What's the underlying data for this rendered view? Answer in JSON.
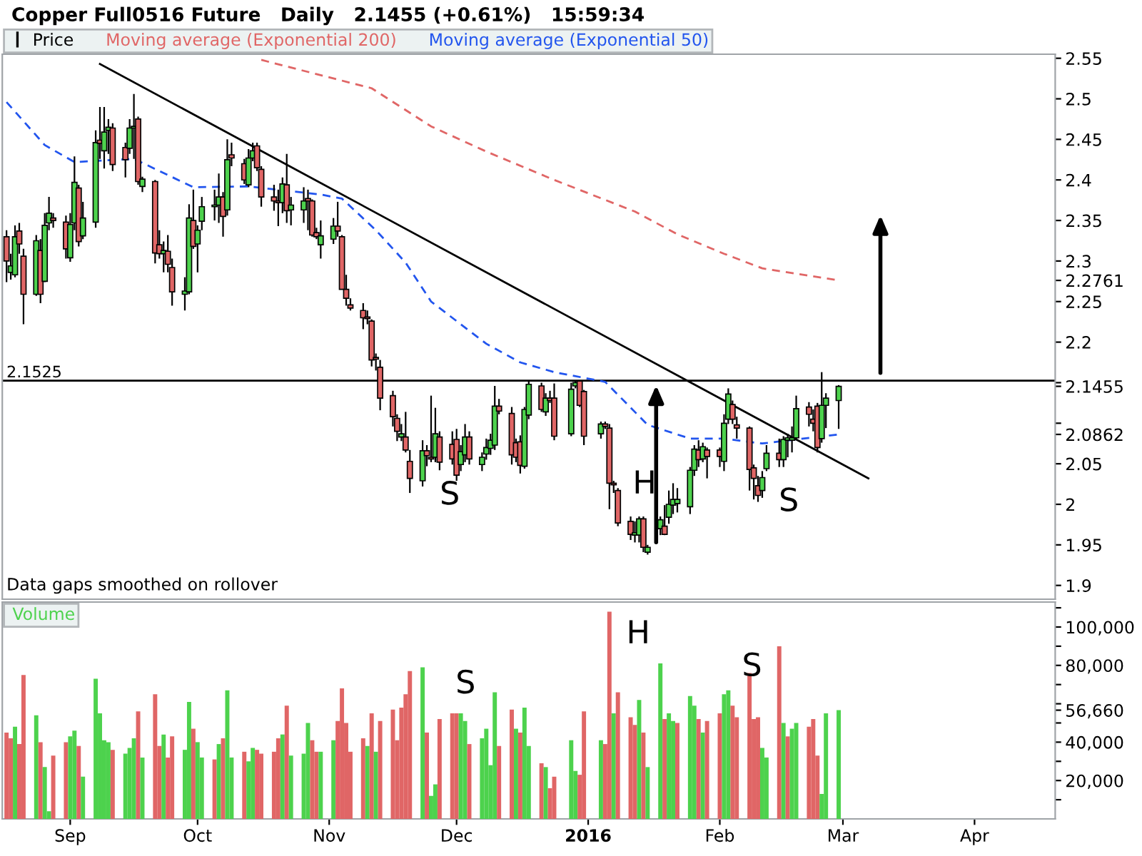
{
  "chart_data": [
    {
      "type": "candlestick",
      "title": "Copper Full0516 Future   Daily   2.1455 (+0.61%)   15:59:34",
      "legend": "top left",
      "tick_labels": "y",
      "grid": false,
      "xlim": [
        "2015-08-16",
        "2016-04-20"
      ],
      "ylim": [
        1.883,
        2.555
      ],
      "yticks": [
        1.9,
        1.95,
        2,
        2.05,
        {
          "value": 2.0862,
          "label": "2.0862"
        },
        {
          "value": 2.1,
          "label": null
        },
        {
          "value": 2.1455,
          "label": "2.1455"
        },
        {
          "value": 2.15,
          "label": null
        },
        2.2,
        2.25,
        {
          "value": 2.2761,
          "label": "2.2761"
        },
        2.3,
        2.35,
        2.4,
        2.45,
        2.5,
        2.55
      ],
      "x": [
        "2015-08-17",
        "2015-08-18",
        "2015-08-19",
        "2015-08-20",
        "2015-08-21",
        "2015-08-24",
        "2015-08-25",
        "2015-08-26",
        "2015-08-27",
        "2015-08-28",
        "2015-08-31",
        "2015-09-01",
        "2015-09-02",
        "2015-09-03",
        "2015-09-04",
        "2015-09-07",
        "2015-09-08",
        "2015-09-09",
        "2015-09-10",
        "2015-09-11",
        "2015-09-14",
        "2015-09-15",
        "2015-09-16",
        "2015-09-17",
        "2015-09-18",
        "2015-09-21",
        "2015-09-22",
        "2015-09-23",
        "2015-09-24",
        "2015-09-25",
        "2015-09-28",
        "2015-09-29",
        "2015-09-30",
        "2015-10-01",
        "2015-10-02",
        "2015-10-05",
        "2015-10-06",
        "2015-10-07",
        "2015-10-08",
        "2015-10-09",
        "2015-10-12",
        "2015-10-13",
        "2015-10-14",
        "2015-10-15",
        "2015-10-16",
        "2015-10-19",
        "2015-10-20",
        "2015-10-21",
        "2015-10-22",
        "2015-10-23",
        "2015-10-26",
        "2015-10-27",
        "2015-10-28",
        "2015-10-29",
        "2015-10-30",
        "2015-11-02",
        "2015-11-03",
        "2015-11-04",
        "2015-11-05",
        "2015-11-06",
        "2015-11-09",
        "2015-11-10",
        "2015-11-11",
        "2015-11-12",
        "2015-11-13",
        "2015-11-16",
        "2015-11-17",
        "2015-11-18",
        "2015-11-19",
        "2015-11-20",
        "2015-11-23",
        "2015-11-24",
        "2015-11-25",
        "2015-11-26",
        "2015-11-27",
        "2015-11-30",
        "2015-12-01",
        "2015-12-02",
        "2015-12-03",
        "2015-12-04",
        "2015-12-07",
        "2015-12-08",
        "2015-12-09",
        "2015-12-10",
        "2015-12-11",
        "2015-12-14",
        "2015-12-15",
        "2015-12-16",
        "2015-12-17",
        "2015-12-18",
        "2015-12-21",
        "2015-12-22",
        "2015-12-23",
        "2015-12-24",
        "2015-12-28",
        "2015-12-29",
        "2015-12-30",
        "2015-12-31",
        "2016-01-04",
        "2016-01-05",
        "2016-01-06",
        "2016-01-07",
        "2016-01-08",
        "2016-01-11",
        "2016-01-12",
        "2016-01-13",
        "2016-01-14",
        "2016-01-15",
        "2016-01-18",
        "2016-01-19",
        "2016-01-20",
        "2016-01-21",
        "2016-01-22",
        "2016-01-25",
        "2016-01-26",
        "2016-01-27",
        "2016-01-28",
        "2016-01-29",
        "2016-02-01",
        "2016-02-02",
        "2016-02-03",
        "2016-02-04",
        "2016-02-05",
        "2016-02-08",
        "2016-02-09",
        "2016-02-10",
        "2016-02-11",
        "2016-02-12",
        "2016-02-15",
        "2016-02-16",
        "2016-02-17",
        "2016-02-18",
        "2016-02-19",
        "2016-02-22",
        "2016-02-23",
        "2016-02-24",
        "2016-02-25",
        "2016-02-26",
        "2016-02-29"
      ],
      "series": [
        {
          "name": "Price",
          "color": "#000000",
          "ohlc": [
            [
              2.33,
              2.338,
              2.274,
              2.3
            ],
            [
              2.286,
              2.309,
              2.277,
              2.294
            ],
            [
              2.283,
              2.344,
              2.28,
              2.33
            ],
            [
              2.337,
              2.347,
              2.309,
              2.321
            ],
            [
              2.306,
              2.315,
              2.222,
              2.259
            ],
            [
              2.259,
              2.332,
              2.257,
              2.325
            ],
            [
              2.313,
              2.327,
              2.248,
              2.259
            ],
            [
              2.275,
              2.359,
              2.274,
              2.344
            ],
            [
              2.347,
              2.379,
              2.338,
              2.359
            ],
            [
              2.353,
              2.359,
              2.341,
              2.35
            ],
            [
              2.348,
              2.356,
              2.303,
              2.315
            ],
            [
              2.304,
              2.359,
              2.299,
              2.345
            ],
            [
              2.347,
              2.429,
              2.338,
              2.397
            ],
            [
              2.39,
              2.394,
              2.318,
              2.324
            ],
            [
              2.331,
              2.373,
              2.327,
              2.353
            ],
            [
              2.348,
              2.461,
              2.341,
              2.446
            ],
            [
              2.449,
              2.49,
              2.426,
              2.445
            ],
            [
              2.436,
              2.49,
              2.414,
              2.459
            ],
            [
              2.461,
              2.475,
              2.432,
              2.465
            ],
            [
              2.464,
              2.47,
              2.411,
              2.419
            ],
            [
              2.44,
              2.446,
              2.403,
              2.425
            ],
            [
              2.439,
              2.475,
              2.432,
              2.464
            ],
            [
              2.464,
              2.506,
              2.426,
              2.466
            ],
            [
              2.475,
              2.478,
              2.394,
              2.398
            ],
            [
              2.392,
              2.404,
              2.385,
              2.401
            ],
            [
              2.398,
              2.4,
              2.297,
              2.31
            ],
            [
              2.32,
              2.338,
              2.303,
              2.309
            ],
            [
              2.309,
              2.324,
              2.286,
              2.313
            ],
            [
              2.312,
              2.332,
              2.286,
              2.296
            ],
            [
              2.292,
              2.303,
              2.245,
              2.262
            ],
            [
              2.259,
              2.28,
              2.239,
              2.263
            ],
            [
              2.262,
              2.37,
              2.259,
              2.353
            ],
            [
              2.35,
              2.388,
              2.315,
              2.318
            ],
            [
              2.321,
              2.344,
              2.286,
              2.338
            ],
            [
              2.349,
              2.379,
              2.338,
              2.367
            ],
            [
              2.367,
              2.388,
              2.35,
              2.369
            ],
            [
              2.369,
              2.408,
              2.347,
              2.379
            ],
            [
              2.379,
              2.385,
              2.33,
              2.355
            ],
            [
              2.363,
              2.45,
              2.356,
              2.425
            ],
            [
              2.431,
              2.446,
              2.417,
              2.427
            ],
            [
              2.42,
              2.426,
              2.395,
              2.4
            ],
            [
              2.394,
              2.438,
              2.391,
              2.427
            ],
            [
              2.427,
              2.446,
              2.423,
              2.436
            ],
            [
              2.442,
              2.446,
              2.411,
              2.415
            ],
            [
              2.413,
              2.417,
              2.367,
              2.379
            ],
            [
              2.379,
              2.394,
              2.362,
              2.374
            ],
            [
              2.374,
              2.388,
              2.343,
              2.372
            ],
            [
              2.372,
              2.403,
              2.359,
              2.395
            ],
            [
              2.394,
              2.432,
              2.347,
              2.362
            ],
            [
              2.363,
              2.379,
              2.344,
              2.369
            ],
            [
              2.363,
              2.391,
              2.347,
              2.374
            ],
            [
              2.377,
              2.388,
              2.338,
              2.374
            ],
            [
              2.374,
              2.376,
              2.33,
              2.332
            ],
            [
              2.335,
              2.341,
              2.327,
              2.33
            ],
            [
              2.32,
              2.35,
              2.303,
              2.331
            ],
            [
              2.327,
              2.353,
              2.321,
              2.343
            ],
            [
              2.343,
              2.373,
              2.33,
              2.337
            ],
            [
              2.33,
              2.332,
              2.265,
              2.265
            ],
            [
              2.265,
              2.283,
              2.245,
              2.254
            ],
            [
              2.246,
              2.254,
              2.239,
              2.242
            ],
            [
              2.239,
              2.248,
              2.216,
              2.23
            ],
            [
              2.231,
              2.239,
              2.222,
              2.229
            ],
            [
              2.226,
              2.228,
              2.17,
              2.178
            ],
            [
              2.181,
              2.186,
              2.165,
              2.179
            ],
            [
              2.169,
              2.178,
              2.116,
              2.131
            ],
            [
              2.134,
              2.14,
              2.096,
              2.108
            ],
            [
              2.106,
              2.111,
              2.078,
              2.09
            ],
            [
              2.083,
              2.099,
              2.078,
              2.087
            ],
            [
              2.083,
              2.114,
              2.064,
              2.067
            ],
            [
              2.053,
              2.067,
              2.014,
              2.032
            ],
            [
              2.029,
              2.079,
              2.022,
              2.066
            ],
            [
              2.066,
              2.073,
              2.047,
              2.06
            ],
            [
              2.058,
              2.134,
              2.052,
              2.056
            ],
            [
              2.058,
              2.119,
              2.052,
              2.087
            ],
            [
              2.083,
              2.09,
              2.042,
              2.052
            ],
            [
              2.074,
              2.09,
              2.049,
              2.056
            ],
            [
              2.08,
              2.093,
              2.029,
              2.036
            ],
            [
              2.049,
              2.073,
              2.041,
              2.065
            ],
            [
              2.061,
              2.099,
              2.052,
              2.083
            ],
            [
              2.083,
              2.09,
              2.049,
              2.056
            ],
            [
              2.049,
              2.064,
              2.041,
              2.058
            ],
            [
              2.062,
              2.081,
              2.055,
              2.07
            ],
            [
              2.069,
              2.087,
              2.061,
              2.079
            ],
            [
              2.073,
              2.146,
              2.067,
              2.121
            ],
            [
              2.121,
              2.13,
              2.111,
              2.115
            ],
            [
              2.112,
              2.12,
              2.049,
              2.061
            ],
            [
              2.076,
              2.081,
              2.052,
              2.058
            ],
            [
              2.077,
              2.085,
              2.038,
              2.048
            ],
            [
              2.047,
              2.12,
              2.044,
              2.117
            ],
            [
              2.11,
              2.152,
              2.105,
              2.148
            ],
            [
              2.146,
              2.15,
              2.114,
              2.117
            ],
            [
              2.114,
              2.137,
              2.109,
              2.131
            ],
            [
              2.131,
              2.14,
              2.125,
              2.128
            ],
            [
              2.131,
              2.149,
              2.079,
              2.084
            ],
            [
              2.087,
              2.15,
              2.084,
              2.142
            ],
            [
              2.146,
              2.152,
              2.143,
              2.15
            ],
            [
              2.152,
              2.153,
              2.12,
              2.122
            ],
            [
              2.139,
              2.141,
              2.073,
              2.084
            ],
            [
              2.087,
              2.102,
              2.081,
              2.099
            ],
            [
              2.099,
              2.102,
              2.093,
              2.096
            ],
            [
              2.094,
              2.099,
              1.994,
              2.026
            ],
            [
              2.026,
              2.029,
              2.014,
              2.024
            ],
            [
              2.017,
              2.02,
              1.973,
              1.977
            ],
            [
              1.979,
              1.985,
              1.956,
              1.963
            ],
            [
              1.962,
              1.979,
              1.953,
              1.965
            ],
            [
              1.962,
              1.985,
              1.953,
              1.982
            ],
            [
              1.982,
              1.985,
              1.941,
              1.947
            ],
            [
              1.941,
              1.95,
              1.938,
              1.947
            ],
            [
              1.97,
              1.985,
              1.962,
              1.981
            ],
            [
              1.973,
              1.999,
              1.962,
              1.963
            ],
            [
              1.984,
              2.017,
              1.976,
              2.0
            ],
            [
              1.999,
              2.026,
              1.988,
              2.006
            ],
            [
              2.001,
              2.02,
              1.99,
              2.006
            ],
            [
              1.997,
              2.046,
              1.988,
              2.042
            ],
            [
              2.042,
              2.073,
              2.035,
              2.068
            ],
            [
              2.067,
              2.079,
              2.046,
              2.055
            ],
            [
              2.056,
              2.076,
              2.052,
              2.071
            ],
            [
              2.067,
              2.07,
              2.032,
              2.059
            ],
            [
              2.067,
              2.07,
              2.046,
              2.059
            ],
            [
              2.053,
              2.111,
              2.041,
              2.1
            ],
            [
              2.105,
              2.143,
              2.099,
              2.136
            ],
            [
              2.123,
              2.128,
              2.099,
              2.105
            ],
            [
              2.098,
              2.108,
              2.081,
              2.094
            ],
            [
              2.094,
              2.096,
              2.017,
              2.043
            ],
            [
              2.045,
              2.049,
              2.006,
              2.032
            ],
            [
              2.023,
              2.035,
              2.003,
              2.011
            ],
            [
              2.017,
              2.041,
              2.008,
              2.033
            ],
            [
              2.044,
              2.073,
              2.041,
              2.063
            ],
            [
              2.063,
              2.081,
              2.046,
              2.055
            ],
            [
              2.055,
              2.084,
              2.046,
              2.08
            ],
            [
              2.079,
              2.087,
              2.058,
              2.082
            ],
            [
              2.079,
              2.096,
              2.064,
              2.082
            ],
            [
              2.082,
              2.134,
              2.079,
              2.118
            ],
            [
              2.12,
              2.126,
              2.096,
              2.111
            ],
            [
              2.105,
              2.117,
              2.09,
              2.1
            ],
            [
              2.121,
              2.125,
              2.064,
              2.07
            ],
            [
              2.081,
              2.163,
              2.076,
              2.122
            ],
            [
              2.122,
              2.137,
              2.094,
              2.131
            ],
            [
              2.128,
              2.147,
              2.093,
              2.1455
            ]
          ],
          "colors": [
            "#e06666",
            "#4dd24d",
            "#4dd24d",
            "#e06666",
            "#e06666",
            "#4dd24d",
            "#e06666",
            "#4dd24d",
            "#4dd24d",
            "#e06666",
            "#e06666",
            "#4dd24d",
            "#4dd24d",
            "#e06666",
            "#4dd24d",
            "#4dd24d",
            "#e06666",
            "#4dd24d",
            "#4dd24d",
            "#e06666",
            "#e06666",
            "#4dd24d",
            "#4dd24d",
            "#e06666",
            "#4dd24d",
            "#e06666",
            "#e06666",
            "#4dd24d",
            "#e06666",
            "#e06666",
            "#4dd24d",
            "#4dd24d",
            "#e06666",
            "#4dd24d",
            "#4dd24d",
            "#4dd24d",
            "#4dd24d",
            "#e06666",
            "#4dd24d",
            "#e06666",
            "#e06666",
            "#4dd24d",
            "#4dd24d",
            "#e06666",
            "#e06666",
            "#e06666",
            "#e06666",
            "#4dd24d",
            "#e06666",
            "#4dd24d",
            "#4dd24d",
            "#e06666",
            "#e06666",
            "#e06666",
            "#4dd24d",
            "#4dd24d",
            "#e06666",
            "#e06666",
            "#e06666",
            "#e06666",
            "#e06666",
            "#e06666",
            "#e06666",
            "#e06666",
            "#e06666",
            "#e06666",
            "#e06666",
            "#4dd24d",
            "#e06666",
            "#e06666",
            "#4dd24d",
            "#e06666",
            "#e06666",
            "#4dd24d",
            "#e06666",
            "#e06666",
            "#e06666",
            "#4dd24d",
            "#4dd24d",
            "#e06666",
            "#4dd24d",
            "#4dd24d",
            "#4dd24d",
            "#4dd24d",
            "#e06666",
            "#e06666",
            "#e06666",
            "#e06666",
            "#4dd24d",
            "#4dd24d",
            "#e06666",
            "#4dd24d",
            "#e06666",
            "#e06666",
            "#4dd24d",
            "#4dd24d",
            "#e06666",
            "#e06666",
            "#4dd24d",
            "#e06666",
            "#e06666",
            "#e06666",
            "#e06666",
            "#e06666",
            "#4dd24d",
            "#4dd24d",
            "#e06666",
            "#4dd24d",
            "#4dd24d",
            "#e06666",
            "#4dd24d",
            "#4dd24d",
            "#4dd24d",
            "#4dd24d",
            "#4dd24d",
            "#e06666",
            "#4dd24d",
            "#e06666",
            "#e06666",
            "#4dd24d",
            "#4dd24d",
            "#e06666",
            "#e06666",
            "#e06666",
            "#e06666",
            "#e06666",
            "#4dd24d",
            "#4dd24d",
            "#e06666",
            "#4dd24d",
            "#4dd24d",
            "#4dd24d",
            "#4dd24d",
            "#e06666",
            "#e06666",
            "#e06666",
            "#4dd24d",
            "#4dd24d",
            "#4dd24d"
          ]
        },
        {
          "type": "line",
          "name": "Moving average (Exponential 200)",
          "color": "#e06666",
          "line_style": "dashed",
          "x": [
            "2015-10-16",
            "2015-11-11",
            "2015-11-25",
            "2015-12-08",
            "2015-12-24",
            "2016-01-12",
            "2016-01-22",
            "2016-02-02",
            "2016-02-11",
            "2016-02-29"
          ],
          "values": [
            2.548,
            2.513,
            2.466,
            2.435,
            2.4,
            2.361,
            2.333,
            2.309,
            2.291,
            2.2761
          ]
        },
        {
          "type": "line",
          "name": "Moving average (Exponential 50)",
          "color": "#2255ee",
          "line_style": "dashed",
          "x": [
            "2015-08-17",
            "2015-08-26",
            "2015-09-02",
            "2015-09-16",
            "2015-09-30",
            "2015-10-13",
            "2015-10-30",
            "2015-11-04",
            "2015-11-12",
            "2015-11-19",
            "2015-11-25",
            "2015-12-08",
            "2015-12-16",
            "2015-12-24",
            "2016-01-05",
            "2016-01-15",
            "2016-01-25",
            "2016-02-02",
            "2016-02-11",
            "2016-02-29"
          ],
          "values": [
            2.496,
            2.443,
            2.422,
            2.426,
            2.391,
            2.392,
            2.382,
            2.377,
            2.338,
            2.298,
            2.25,
            2.198,
            2.175,
            2.163,
            2.151,
            2.098,
            2.081,
            2.081,
            2.075,
            2.0862
          ]
        },
        {
          "type": "line",
          "color": "#000000",
          "line_style": "solid",
          "x": [
            "2015-09-08",
            "2016-03-07"
          ],
          "values": [
            2.543,
            2.032
          ]
        }
      ],
      "ref_lines": [
        {
          "axis": "y",
          "value": 2.1525,
          "label": "2.1525",
          "color": "#000000"
        }
      ],
      "annotations": [
        "Data gaps smoothed on rollover",
        "S",
        "H",
        "S"
      ]
    },
    {
      "type": "bar",
      "legend": "top left",
      "grid": false,
      "xlim": [
        "2015-08-16",
        "2016-04-20"
      ],
      "ylim": [
        0,
        113000
      ],
      "xticks": [
        {
          "value": "2015-09-01",
          "label": "Sep"
        },
        {
          "value": "2015-10-01",
          "label": "Oct"
        },
        {
          "value": "2015-11-01",
          "label": "Nov"
        },
        {
          "value": "2015-12-01",
          "label": "Dec"
        },
        {
          "value": "2016-01-01",
          "label": "2016"
        },
        {
          "value": "2016-02-01",
          "label": "Feb"
        },
        {
          "value": "2016-03-01",
          "label": "Mar"
        },
        {
          "value": "2016-04-01",
          "label": "Apr"
        }
      ],
      "yticks": [
        {
          "value": 10000,
          "label": null
        },
        {
          "value": 20000,
          "label": "20,000"
        },
        {
          "value": 30000,
          "label": null
        },
        {
          "value": 40000,
          "label": "40,000"
        },
        {
          "value": 50000,
          "label": null
        },
        {
          "value": 56660,
          "label": "56,660"
        },
        {
          "value": 60000,
          "label": null
        },
        {
          "value": 70000,
          "label": null
        },
        {
          "value": 80000,
          "label": "80,000"
        },
        {
          "value": 90000,
          "label": null
        },
        {
          "value": 100000,
          "label": "100,000"
        },
        {
          "value": 110000,
          "label": null
        }
      ],
      "x": [
        "2015-08-17",
        "2015-08-18",
        "2015-08-19",
        "2015-08-20",
        "2015-08-21",
        "2015-08-24",
        "2015-08-25",
        "2015-08-26",
        "2015-08-27",
        "2015-08-28",
        "2015-08-31",
        "2015-09-01",
        "2015-09-02",
        "2015-09-03",
        "2015-09-04",
        "2015-09-07",
        "2015-09-08",
        "2015-09-09",
        "2015-09-10",
        "2015-09-11",
        "2015-09-14",
        "2015-09-15",
        "2015-09-16",
        "2015-09-17",
        "2015-09-18",
        "2015-09-21",
        "2015-09-22",
        "2015-09-23",
        "2015-09-24",
        "2015-09-25",
        "2015-09-28",
        "2015-09-29",
        "2015-09-30",
        "2015-10-01",
        "2015-10-02",
        "2015-10-05",
        "2015-10-06",
        "2015-10-07",
        "2015-10-08",
        "2015-10-09",
        "2015-10-12",
        "2015-10-13",
        "2015-10-14",
        "2015-10-15",
        "2015-10-16",
        "2015-10-19",
        "2015-10-20",
        "2015-10-21",
        "2015-10-22",
        "2015-10-23",
        "2015-10-26",
        "2015-10-27",
        "2015-10-28",
        "2015-10-29",
        "2015-10-30",
        "2015-11-02",
        "2015-11-03",
        "2015-11-04",
        "2015-11-05",
        "2015-11-06",
        "2015-11-09",
        "2015-11-10",
        "2015-11-11",
        "2015-11-12",
        "2015-11-13",
        "2015-11-16",
        "2015-11-17",
        "2015-11-18",
        "2015-11-19",
        "2015-11-20",
        "2015-11-23",
        "2015-11-24",
        "2015-11-25",
        "2015-11-26",
        "2015-11-27",
        "2015-11-30",
        "2015-12-01",
        "2015-12-02",
        "2015-12-03",
        "2015-12-04",
        "2015-12-07",
        "2015-12-08",
        "2015-12-09",
        "2015-12-10",
        "2015-12-11",
        "2015-12-14",
        "2015-12-15",
        "2015-12-16",
        "2015-12-17",
        "2015-12-18",
        "2015-12-21",
        "2015-12-22",
        "2015-12-23",
        "2015-12-24",
        "2015-12-28",
        "2015-12-29",
        "2015-12-30",
        "2015-12-31",
        "2016-01-04",
        "2016-01-05",
        "2016-01-06",
        "2016-01-07",
        "2016-01-08",
        "2016-01-11",
        "2016-01-12",
        "2016-01-13",
        "2016-01-14",
        "2016-01-15",
        "2016-01-18",
        "2016-01-19",
        "2016-01-20",
        "2016-01-21",
        "2016-01-22",
        "2016-01-25",
        "2016-01-26",
        "2016-01-27",
        "2016-01-28",
        "2016-01-29",
        "2016-02-01",
        "2016-02-02",
        "2016-02-03",
        "2016-02-04",
        "2016-02-05",
        "2016-02-08",
        "2016-02-09",
        "2016-02-10",
        "2016-02-11",
        "2016-02-12",
        "2016-02-15",
        "2016-02-16",
        "2016-02-17",
        "2016-02-18",
        "2016-02-19",
        "2016-02-22",
        "2016-02-23",
        "2016-02-24",
        "2016-02-25",
        "2016-02-26",
        "2016-02-29"
      ],
      "series": [
        {
          "name": "Volume",
          "color": "#4dd24d",
          "values": [
            45000,
            42000,
            48000,
            39000,
            75000,
            54000,
            40000,
            27000,
            4000,
            33000,
            40000,
            43000,
            46000,
            38000,
            22000,
            73000,
            55000,
            41000,
            40000,
            36000,
            34000,
            37000,
            42000,
            56000,
            32000,
            65000,
            38000,
            44000,
            32000,
            43000,
            36000,
            61000,
            47000,
            40000,
            32000,
            31000,
            39000,
            42000,
            67000,
            32000,
            35000,
            30000,
            37000,
            36000,
            34000,
            35000,
            42000,
            44000,
            59000,
            33000,
            34000,
            50000,
            41000,
            35000,
            35000,
            41000,
            51000,
            68000,
            50000,
            35000,
            42000,
            38000,
            55000,
            35000,
            51000,
            57000,
            41000,
            58000,
            65000,
            77000,
            79000,
            45000,
            12000,
            18000,
            52000,
            55000,
            55000,
            55000,
            51000,
            39000,
            42000,
            47000,
            28000,
            66000,
            38000,
            57000,
            47000,
            45000,
            58000,
            38000,
            29000,
            27000,
            16000,
            22000,
            41000,
            25000,
            23000,
            56000,
            41000,
            39000,
            108000,
            55000,
            66000,
            53000,
            49000,
            62000,
            45000,
            27000,
            81000,
            52000,
            55000,
            51000,
            50000,
            64000,
            59000,
            52000,
            45000,
            51000,
            55000,
            65000,
            67000,
            59000,
            53000,
            76000,
            52000,
            53000,
            37000,
            32000,
            90000,
            50000,
            43000,
            47000,
            50000,
            48000,
            52000,
            33000,
            13000,
            55000,
            56660
          ],
          "colors": [
            "#e06666",
            "#e06666",
            "#4dd24d",
            "#e06666",
            "#e06666",
            "#4dd24d",
            "#e06666",
            "#4dd24d",
            "#4dd24d",
            "#e06666",
            "#e06666",
            "#4dd24d",
            "#4dd24d",
            "#e06666",
            "#4dd24d",
            "#4dd24d",
            "#4dd24d",
            "#4dd24d",
            "#4dd24d",
            "#e06666",
            "#4dd24d",
            "#4dd24d",
            "#4dd24d",
            "#e06666",
            "#4dd24d",
            "#e06666",
            "#e06666",
            "#4dd24d",
            "#e06666",
            "#e06666",
            "#4dd24d",
            "#4dd24d",
            "#e06666",
            "#4dd24d",
            "#4dd24d",
            "#e06666",
            "#4dd24d",
            "#e06666",
            "#4dd24d",
            "#4dd24d",
            "#e06666",
            "#4dd24d",
            "#4dd24d",
            "#e06666",
            "#e06666",
            "#e06666",
            "#e06666",
            "#4dd24d",
            "#e06666",
            "#4dd24d",
            "#4dd24d",
            "#4dd24d",
            "#e06666",
            "#e06666",
            "#4dd24d",
            "#4dd24d",
            "#e06666",
            "#e06666",
            "#e06666",
            "#e06666",
            "#e06666",
            "#4dd24d",
            "#e06666",
            "#4dd24d",
            "#e06666",
            "#e06666",
            "#e06666",
            "#e06666",
            "#e06666",
            "#e06666",
            "#4dd24d",
            "#e06666",
            "#4dd24d",
            "#4dd24d",
            "#e06666",
            "#e06666",
            "#e06666",
            "#4dd24d",
            "#4dd24d",
            "#e06666",
            "#4dd24d",
            "#4dd24d",
            "#4dd24d",
            "#4dd24d",
            "#e06666",
            "#e06666",
            "#4dd24d",
            "#e06666",
            "#4dd24d",
            "#4dd24d",
            "#e06666",
            "#4dd24d",
            "#e06666",
            "#e06666",
            "#4dd24d",
            "#4dd24d",
            "#e06666",
            "#e06666",
            "#4dd24d",
            "#e06666",
            "#e06666",
            "#4dd24d",
            "#e06666",
            "#e06666",
            "#e06666",
            "#4dd24d",
            "#e06666",
            "#4dd24d",
            "#4dd24d",
            "#e06666",
            "#4dd24d",
            "#4dd24d",
            "#e06666",
            "#4dd24d",
            "#4dd24d",
            "#e06666",
            "#4dd24d",
            "#e06666",
            "#e06666",
            "#4dd24d",
            "#4dd24d",
            "#e06666",
            "#e06666",
            "#e06666",
            "#e06666",
            "#e06666",
            "#4dd24d",
            "#4dd24d",
            "#e06666",
            "#4dd24d",
            "#e06666",
            "#4dd24d",
            "#4dd24d",
            "#e06666",
            "#e06666",
            "#e06666",
            "#4dd24d",
            "#4dd24d",
            "#4dd24d"
          ]
        }
      ],
      "annotations": [
        "S",
        "H",
        "S"
      ]
    }
  ]
}
